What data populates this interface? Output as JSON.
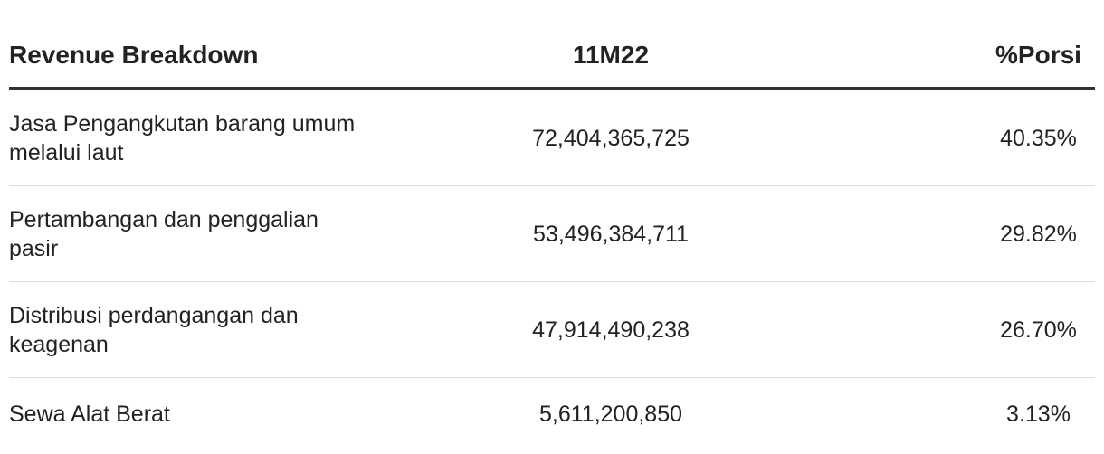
{
  "table": {
    "header": [
      "Revenue Breakdown",
      "11M22",
      "%Porsi"
    ],
    "rows": [
      [
        "Jasa Pengangkutan barang umum melalui laut",
        "72,404,365,725",
        "40.35%"
      ],
      [
        "Pertambangan dan penggalian pasir",
        "53,496,384,711",
        "29.82%"
      ],
      [
        "Distribusi perdangangan dan keagenan",
        "47,914,490,238",
        "26.70%"
      ],
      [
        "Sewa Alat Berat",
        "5,611,200,850",
        "3.13%"
      ]
    ]
  }
}
